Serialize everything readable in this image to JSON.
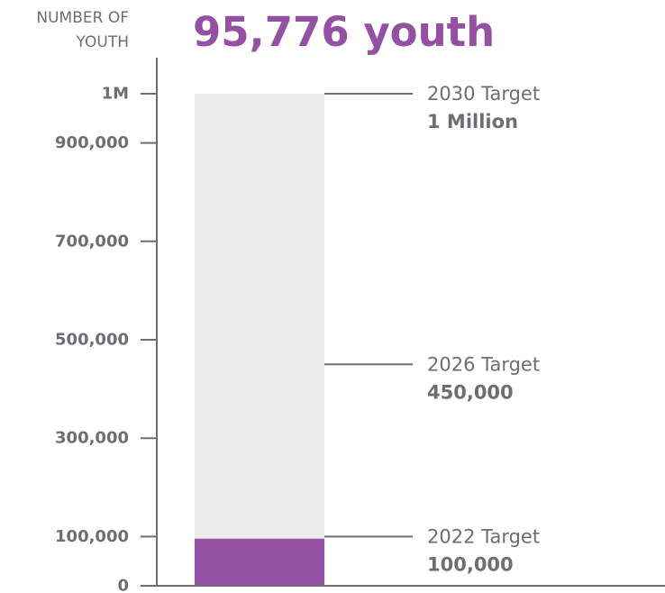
{
  "chart_data": {
    "type": "bar",
    "headline": "95,776 youth",
    "ylabel_lines": [
      "NUMBER OF",
      "YOUTH"
    ],
    "ylim": [
      0,
      1000000
    ],
    "yticks": [
      {
        "value": 0,
        "label": "0"
      },
      {
        "value": 100000,
        "label": "100,000"
      },
      {
        "value": 300000,
        "label": "300,000"
      },
      {
        "value": 500000,
        "label": "500,000"
      },
      {
        "value": 700000,
        "label": "700,000"
      },
      {
        "value": 900000,
        "label": "900,000"
      },
      {
        "value": 1000000,
        "label": "1M"
      }
    ],
    "bar": {
      "value": 95776,
      "total": 1000000,
      "fill_color": "#9450a2",
      "background_color": "#ebebea"
    },
    "targets": [
      {
        "value": 1000000,
        "title": "2030 Target",
        "value_label": "1 Million"
      },
      {
        "value": 450000,
        "title": "2026 Target",
        "value_label": "450,000"
      },
      {
        "value": 100000,
        "title": "2022 Target",
        "value_label": "100,000"
      }
    ],
    "colors": {
      "accent": "#9450a2",
      "axis": "#6d6e71",
      "text": "#6d6e71",
      "bar_background": "#ebebea"
    }
  }
}
